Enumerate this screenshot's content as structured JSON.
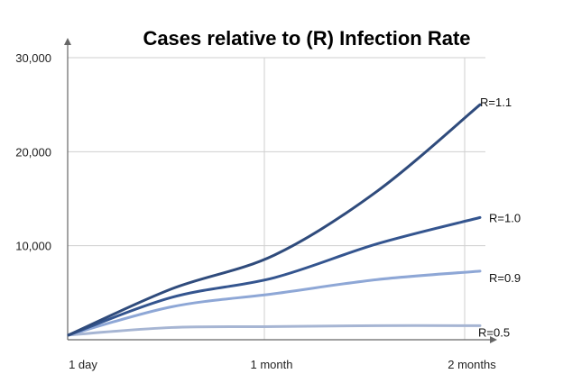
{
  "chart_data": {
    "type": "line",
    "title": "Cases relative to (R) Infection Rate",
    "xlabel": "",
    "ylabel": "",
    "x_tick_labels": [
      "1 day",
      "1 month",
      "2 months"
    ],
    "y_tick_labels": [
      "10,000",
      "20,000",
      "30,000"
    ],
    "y_ticks": [
      10000,
      20000,
      30000
    ],
    "ylim": [
      0,
      30000
    ],
    "grid": true,
    "x": [
      0,
      0.25,
      0.5,
      0.75,
      1.0
    ],
    "series": [
      {
        "name": "R=1.1",
        "color": "#2f4b7c",
        "values": [
          500,
          5400,
          9000,
          15800,
          25000
        ]
      },
      {
        "name": "R=1.0",
        "color": "#34558f",
        "values": [
          500,
          4500,
          6600,
          10200,
          13000
        ]
      },
      {
        "name": "R=0.9",
        "color": "#8ea7d6",
        "values": [
          500,
          3500,
          4900,
          6400,
          7300
        ]
      },
      {
        "name": "R=0.5",
        "color": "#a6b5d3",
        "values": [
          500,
          1300,
          1400,
          1500,
          1500
        ]
      }
    ]
  }
}
